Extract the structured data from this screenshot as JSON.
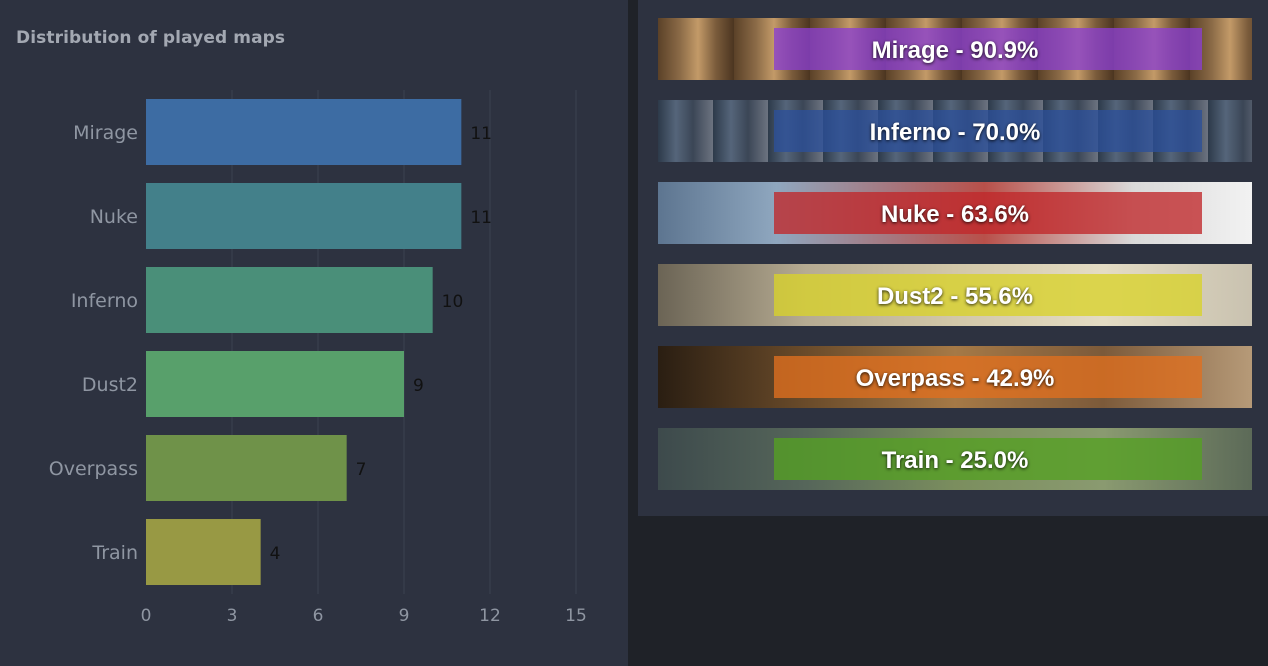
{
  "chart_panel": {
    "title": "Distribution of played maps"
  },
  "chart_data": {
    "type": "bar",
    "orientation": "horizontal",
    "title": "Distribution of played maps",
    "categories": [
      "Mirage",
      "Nuke",
      "Inferno",
      "Dust2",
      "Overpass",
      "Train"
    ],
    "values": [
      11,
      11,
      10,
      9,
      7,
      4
    ],
    "data_labels": [
      "11",
      "11",
      "10",
      "9",
      "7",
      "4"
    ],
    "bar_colors": [
      "#3d6ca3",
      "#43808a",
      "#4a8f79",
      "#58a06b",
      "#6f9249",
      "#989944"
    ],
    "xlim": [
      0,
      15
    ],
    "xticks": [
      0,
      3,
      6,
      9,
      12,
      15
    ],
    "xtick_labels": [
      "0",
      "3",
      "6",
      "9",
      "12",
      "15"
    ],
    "grid": true,
    "legend": "none"
  },
  "winrates": {
    "items": [
      {
        "label": "Mirage - 90.9%",
        "map": "Mirage",
        "winrate": 90.9,
        "color": "#8a3fd1"
      },
      {
        "label": "Inferno - 70.0%",
        "map": "Inferno",
        "winrate": 70.0,
        "color": "#2c4f9a"
      },
      {
        "label": "Nuke - 63.6%",
        "map": "Nuke",
        "winrate": 63.6,
        "color": "#c0282a"
      },
      {
        "label": "Dust2 - 55.6%",
        "map": "Dust2",
        "winrate": 55.6,
        "color": "#d8d22a"
      },
      {
        "label": "Overpass - 42.9%",
        "map": "Overpass",
        "winrate": 42.9,
        "color": "#e0701f"
      },
      {
        "label": "Train - 25.0%",
        "map": "Train",
        "winrate": 25.0,
        "color": "#54a022"
      }
    ]
  },
  "colors": {
    "panel_bg": "#2d3240",
    "page_bg": "#1f2228",
    "muted_text": "#8f96a2",
    "grid": "#3b4150"
  }
}
